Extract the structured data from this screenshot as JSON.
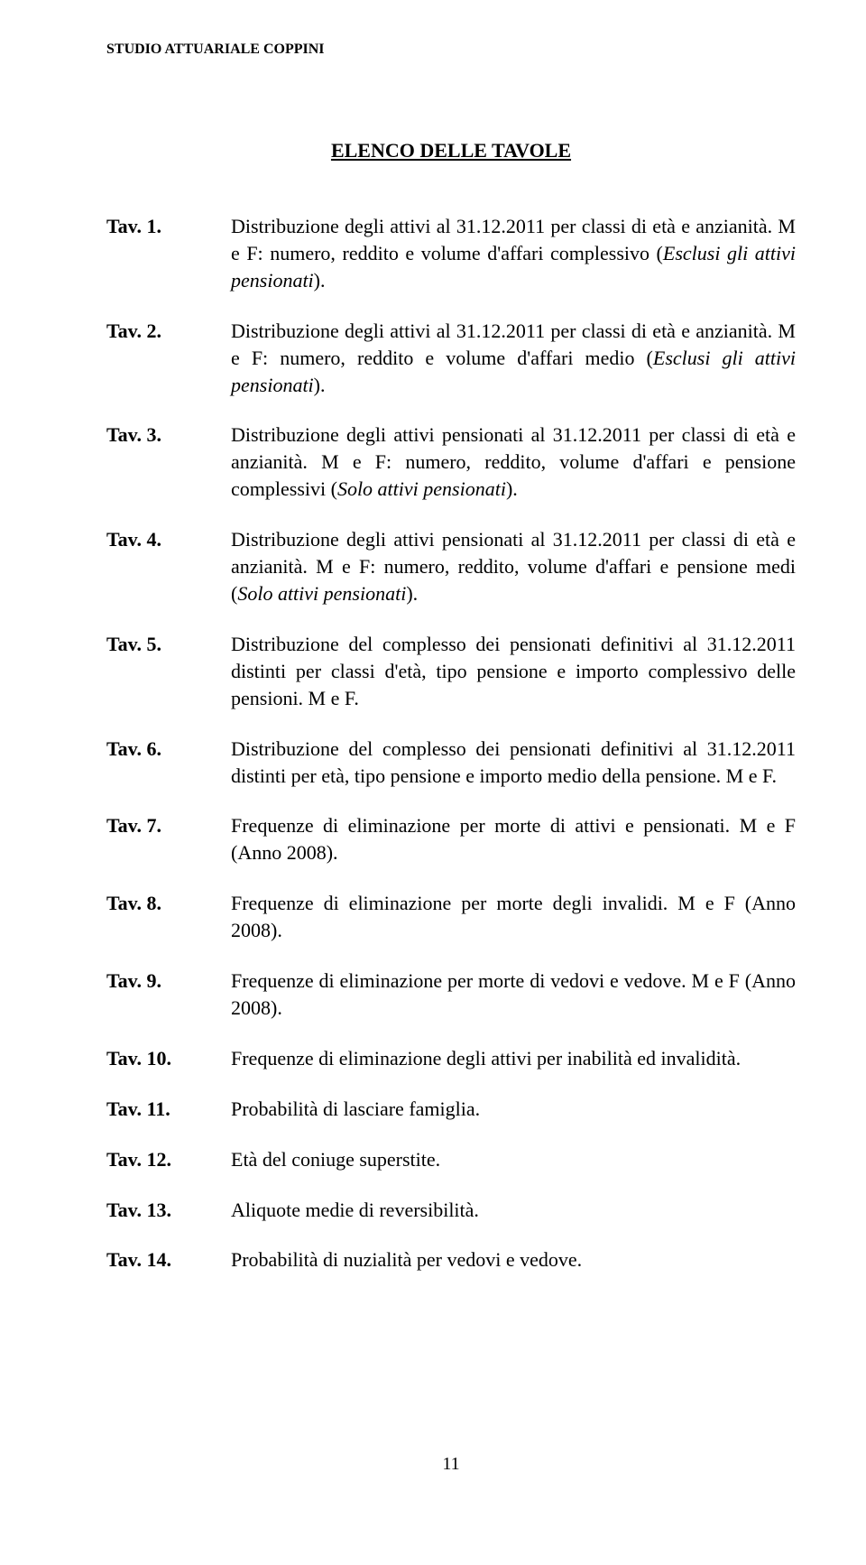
{
  "header": "STUDIO ATTUARIALE COPPINI",
  "title": "ELENCO DELLE TAVOLE",
  "entries": [
    {
      "label": "Tav.  1.",
      "html": "Distribuzione degli attivi al 31.12.2011 per classi di età e anzianità. M e F: numero, reddito e volume d'affari complessivo (<em>Esclusi gli attivi pensionati</em>)."
    },
    {
      "label": "Tav.  2.",
      "html": "Distribuzione degli attivi al 31.12.2011 per classi di età e anzianità. M e F: numero, reddito e volume d'affari medio (<em>Esclusi gli attivi pensionati</em>)."
    },
    {
      "label": "Tav.  3.",
      "html": "Distribuzione degli attivi pensionati al 31.12.2011 per classi di età e anzianità. M e F: numero, reddito, volume d'affari e pensione complessivi (<em>Solo attivi pensionati</em>)."
    },
    {
      "label": "Tav.  4.",
      "html": "Distribuzione degli attivi pensionati al 31.12.2011 per classi di età e anzianità. M e F: numero, reddito, volume d'affari e pensione medi (<em>Solo attivi pensionati</em>)."
    },
    {
      "label": "Tav.  5.",
      "html": "Distribuzione del complesso dei pensionati definitivi al 31.12.2011 distinti per classi d'età, tipo pensione e importo complessivo delle pensioni. M e F."
    },
    {
      "label": "Tav.  6.",
      "html": "Distribuzione del complesso dei pensionati definitivi al 31.12.2011 distinti per età, tipo pensione e importo medio della pensione. M e F."
    },
    {
      "label": "Tav.  7.",
      "html": "Frequenze di eliminazione per morte di attivi e pensionati. M e F (Anno 2008)."
    },
    {
      "label": "Tav.  8.",
      "html": "Frequenze di eliminazione per morte degli invalidi. M e F (Anno 2008)."
    },
    {
      "label": "Tav.  9.",
      "html": "Frequenze di eliminazione per morte di vedovi e vedove. M e F (Anno 2008)."
    },
    {
      "label": "Tav.  10.",
      "html": "Frequenze di eliminazione degli attivi per inabilità ed invalidità."
    },
    {
      "label": "Tav.  11.",
      "html": "Probabilità di lasciare famiglia."
    },
    {
      "label": "Tav.  12.",
      "html": "Età del coniuge superstite."
    },
    {
      "label": "Tav.  13.",
      "html": "Aliquote medie di reversibilità."
    },
    {
      "label": "Tav.  14.",
      "html": "Probabilità di nuzialità per vedovi e vedove."
    }
  ],
  "page_number": "11"
}
